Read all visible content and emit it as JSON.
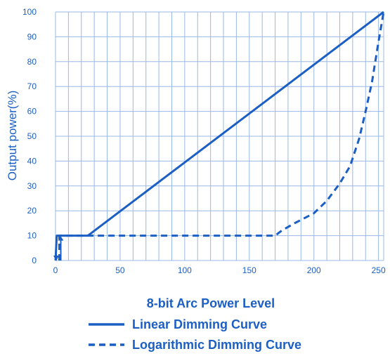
{
  "chart_data": {
    "type": "line",
    "title": "",
    "xlabel": "8-bit Arc Power Level",
    "ylabel": "Output power(%)",
    "xlim": [
      0,
      254
    ],
    "ylim": [
      0,
      100
    ],
    "xticks": [
      0,
      50,
      100,
      150,
      200,
      250
    ],
    "yticks": [
      0,
      10,
      20,
      30,
      40,
      50,
      60,
      70,
      80,
      90,
      100
    ],
    "grid": true,
    "legend_position": "bottom",
    "series": [
      {
        "name": "Linear Dimming Curve",
        "style": "solid",
        "color": "#1c5fc4",
        "x": [
          0,
          1,
          25,
          254
        ],
        "y": [
          0,
          10,
          10,
          100
        ]
      },
      {
        "name": "Logarithmic Dimming Curve",
        "style": "dashed",
        "color": "#1c5fc4",
        "x": [
          3,
          3,
          170,
          175,
          185,
          200,
          210,
          220,
          228,
          235,
          240,
          245,
          250,
          254
        ],
        "y": [
          0,
          10,
          10,
          12,
          15,
          19,
          24,
          31,
          38,
          49,
          60,
          72,
          88,
          100
        ]
      }
    ]
  }
}
